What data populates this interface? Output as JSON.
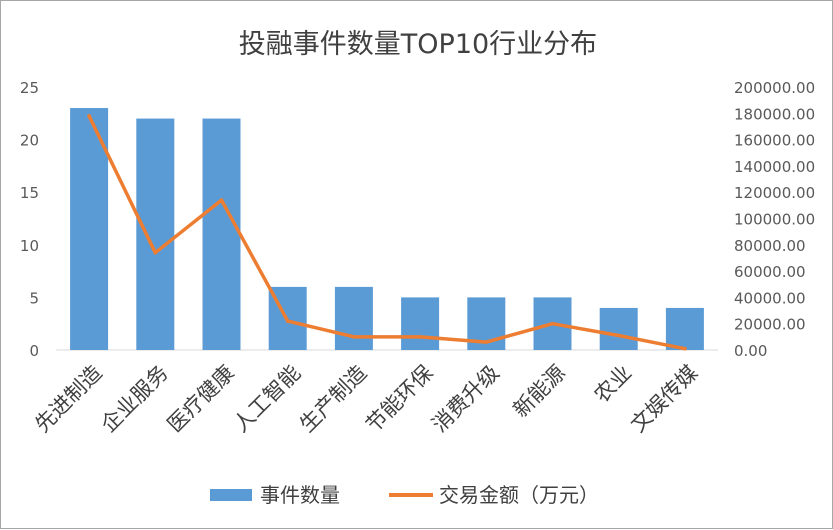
{
  "chart_data": {
    "type": "bar",
    "title": "投融事件数量TOP10行业分布",
    "categories": [
      "先进制造",
      "企业服务",
      "医疗健康",
      "人工智能",
      "生产制造",
      "节能环保",
      "消费升级",
      "新能源",
      "农业",
      "文娱传媒"
    ],
    "series": [
      {
        "name": "事件数量",
        "type": "bar",
        "axis": "left",
        "color": "#5b9bd5",
        "values": [
          23,
          22,
          22,
          6,
          6,
          5,
          5,
          5,
          4,
          4
        ]
      },
      {
        "name": "交易金额（万元）",
        "type": "line",
        "axis": "right",
        "color": "#ed7d31",
        "values": [
          178000,
          74000,
          114000,
          22000,
          10000,
          10000,
          6000,
          20000,
          11000,
          1000
        ]
      }
    ],
    "y_left": {
      "ylim": [
        0,
        25
      ],
      "ticks": [
        "0",
        "5",
        "10",
        "15",
        "20",
        "25"
      ]
    },
    "y_right": {
      "ylim": [
        0,
        200000
      ],
      "ticks": [
        "0.00",
        "20000.00",
        "40000.00",
        "60000.00",
        "80000.00",
        "100000.00",
        "120000.00",
        "140000.00",
        "160000.00",
        "180000.00",
        "200000.00"
      ]
    },
    "grid": false,
    "legend_position": "bottom"
  }
}
